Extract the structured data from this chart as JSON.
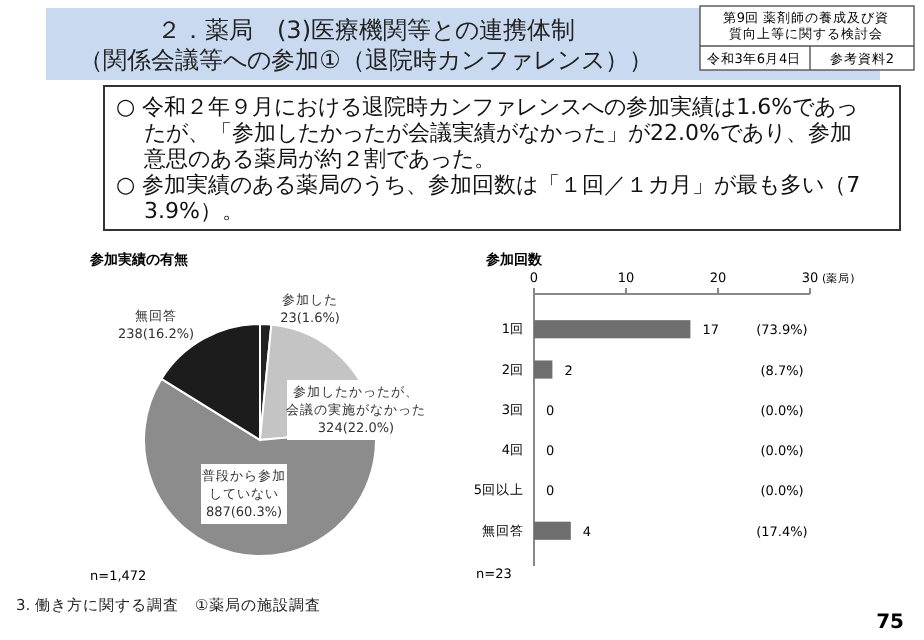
{
  "chart_data": [
    {
      "type": "other",
      "title": "２．薬局　(3)医療機関等との連携体制（関係会議等への参加①（退院時カンファレンス））",
      "annotations": [
        "第9回 薬剤師の養成及び資質向上等に関する検討会",
        "令和3年6月4日",
        "参考資料2",
        "○ 令和２年９月における退院時カンファレンスへの参加実績は1.6%であったが、「参加したかったが会議実績がなかった」が22.0%であり、参加意思のある薬局が約２割であった。",
        "○ 参加実績のある薬局のうち、参加回数は「１回／１カ月」が最も多い（73.9%）。",
        "3. 働き方に関する調査　①薬局の施設調査",
        "75"
      ]
    },
    {
      "type": "pie",
      "title": "参加実績の有無",
      "categories": [
        "参加した",
        "参加したかったが、会議の実施がなかった",
        "普段から参加していない",
        "無回答"
      ],
      "values": [
        23,
        324,
        887,
        238
      ],
      "value_labels": [
        "23(1.6%)",
        "324(22.0%)",
        "887(60.3%)",
        "238(16.2%)"
      ],
      "colors": [
        "#222222",
        "#c4c4c4",
        "#8c8c8c",
        "#1c1c1c"
      ],
      "annotations": [
        "n=1,472"
      ]
    },
    {
      "type": "bar",
      "orientation": "horizontal",
      "title": "参加回数",
      "xlabel": "(薬局)",
      "categories": [
        "1回",
        "2回",
        "3回",
        "4回",
        "5回以上",
        "無回答"
      ],
      "values": [
        17,
        2,
        0,
        0,
        0,
        4
      ],
      "color": "#6e6e6e",
      "xlim": [
        0,
        30
      ],
      "xticks": [
        0,
        10,
        20,
        30
      ],
      "data_labels": true,
      "annotations": [
        "(73.9%)",
        "(8.7%)",
        "(0.0%)",
        "(0.0%)",
        "(0.0%)",
        "(17.4%)",
        "n=23"
      ]
    }
  ]
}
